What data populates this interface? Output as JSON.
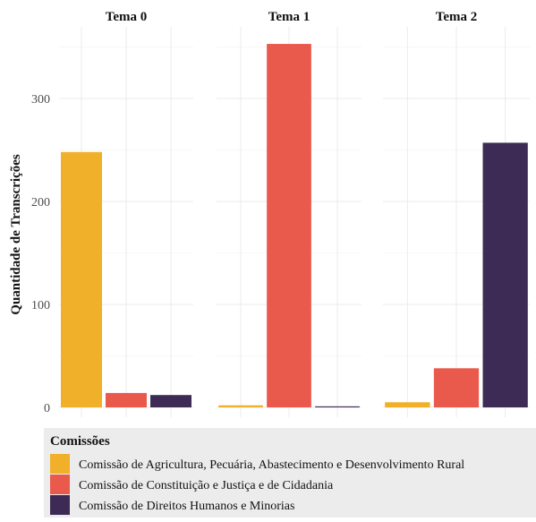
{
  "chart_data": {
    "type": "bar",
    "ylabel": "Quantidade de Transcrições",
    "facets": [
      "Tema 0",
      "Tema 1",
      "Tema 2"
    ],
    "y_ticks": [
      0,
      100,
      200,
      300
    ],
    "ylim": [
      0,
      365
    ],
    "grid": true,
    "legend": {
      "title": "Comissões",
      "placement": "bottom"
    },
    "series": [
      {
        "name": "Comissão de Agricultura, Pecuária, Abastecimento e Desenvolvimento Rural",
        "color": "#F0B02A",
        "values": [
          248,
          2,
          5
        ]
      },
      {
        "name": "Comissão de Constituição e Justiça e de Cidadania",
        "color": "#E95A4C",
        "values": [
          14,
          353,
          38
        ]
      },
      {
        "name": "Comissão de Direitos Humanos e Minorias",
        "color": "#3D2B55",
        "values": [
          12,
          1,
          257
        ]
      }
    ]
  }
}
